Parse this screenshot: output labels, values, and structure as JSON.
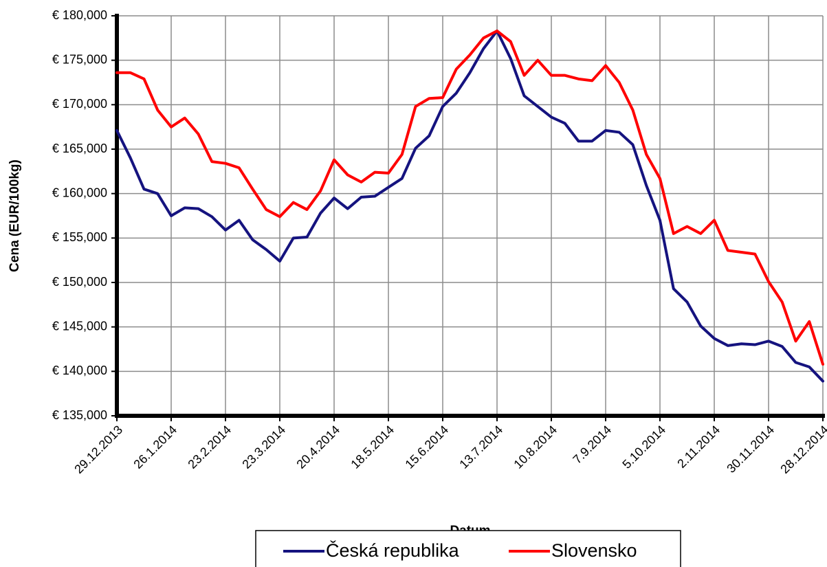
{
  "chart_data": {
    "type": "line",
    "xlabel": "Datum",
    "ylabel": "Cena (EUR/100kg)",
    "categories": [
      "29.12.2013",
      null,
      null,
      null,
      "26.1.2014",
      null,
      null,
      null,
      "23.2.2014",
      null,
      null,
      null,
      "23.3.2014",
      null,
      null,
      null,
      "20.4.2014",
      null,
      null,
      null,
      "18.5.2014",
      null,
      null,
      null,
      "15.6.2014",
      null,
      null,
      null,
      "13.7.2014",
      null,
      null,
      null,
      "10.8.2014",
      null,
      null,
      null,
      "7.9.2014",
      null,
      null,
      null,
      "5.10.2014",
      null,
      null,
      null,
      "2.11.2014",
      null,
      null,
      null,
      "30.11.2014",
      null,
      null,
      null,
      "28.12.2014"
    ],
    "series": [
      {
        "name": "Česká republika",
        "color": "#15137f",
        "values": [
          167100,
          164000,
          160500,
          160000,
          157500,
          158400,
          158300,
          157400,
          155900,
          157000,
          154800,
          153700,
          152400,
          155000,
          155100,
          157800,
          159500,
          158300,
          159600,
          159700,
          160700,
          161700,
          165100,
          166500,
          169800,
          171300,
          173600,
          176300,
          178300,
          175200,
          171000,
          169800,
          168600,
          167900,
          165900,
          165900,
          167100,
          166900,
          165500,
          160900,
          157000,
          149300,
          147800,
          145100,
          143700,
          142900,
          143100,
          143000,
          143400,
          142800,
          141000,
          140500,
          138900
        ]
      },
      {
        "name": "Slovensko",
        "color": "#ff0000",
        "values": [
          173600,
          173600,
          172900,
          169400,
          167500,
          168500,
          166700,
          163600,
          163400,
          162900,
          160500,
          158200,
          157400,
          159000,
          158200,
          160300,
          163800,
          162100,
          161300,
          162400,
          162300,
          164400,
          169800,
          170700,
          170800,
          174000,
          175600,
          177500,
          178300,
          177100,
          173300,
          175000,
          173300,
          173300,
          172900,
          172700,
          174400,
          172500,
          169400,
          164400,
          161700,
          155500,
          156300,
          155500,
          157000,
          153600,
          153400,
          153200,
          150100,
          147800,
          143400,
          145600,
          140800
        ]
      }
    ],
    "ylim": [
      135000,
      180000
    ],
    "yticks": [
      {
        "value": 135000,
        "label": "€ 135,000"
      },
      {
        "value": 140000,
        "label": "€ 140,000"
      },
      {
        "value": 145000,
        "label": "€ 145,000"
      },
      {
        "value": 150000,
        "label": "€ 150,000"
      },
      {
        "value": 155000,
        "label": "€ 155,000"
      },
      {
        "value": 160000,
        "label": "€ 160,000"
      },
      {
        "value": 165000,
        "label": "€ 165,000"
      },
      {
        "value": 170000,
        "label": "€ 170,000"
      },
      {
        "value": 175000,
        "label": "€ 175,000"
      },
      {
        "value": 180000,
        "label": "€ 180,000"
      }
    ],
    "grid": true,
    "legend": "bottom"
  }
}
